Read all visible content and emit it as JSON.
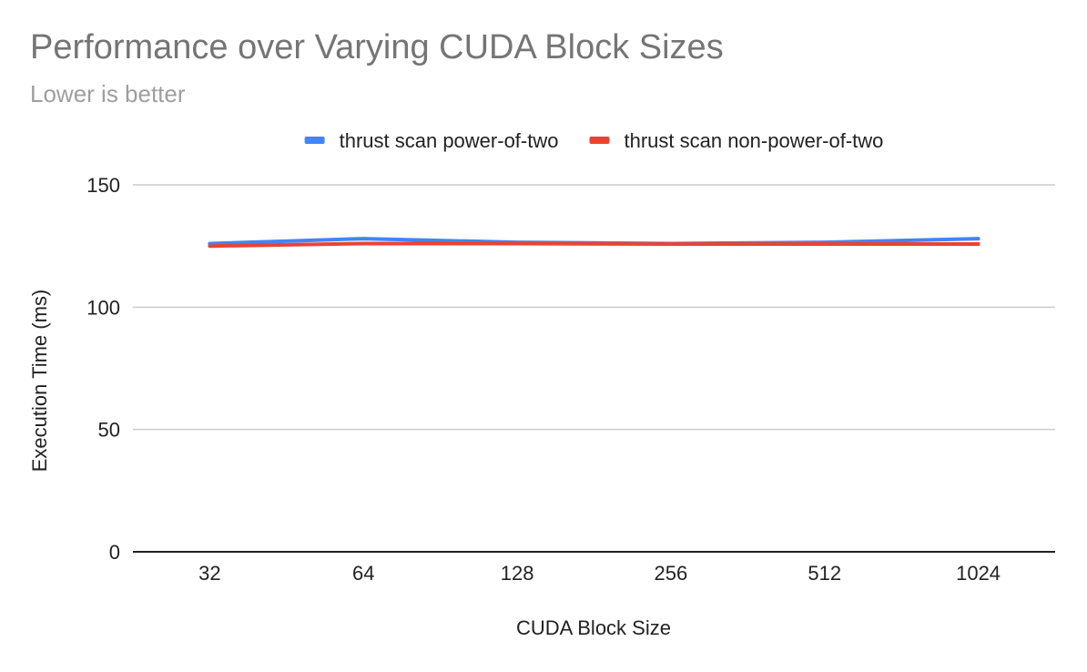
{
  "chart_data": {
    "type": "line",
    "title": "Performance over Varying CUDA Block Sizes",
    "subtitle": "Lower is better",
    "xlabel": "CUDA Block Size",
    "ylabel": "Execution Time (ms)",
    "categories": [
      "32",
      "64",
      "128",
      "256",
      "512",
      "1024"
    ],
    "ylim": [
      0,
      150
    ],
    "yticks": [
      "0",
      "50",
      "100",
      "150"
    ],
    "grid": true,
    "legend_position": "top",
    "series": [
      {
        "name": "thrust scan power-of-two",
        "color": "#4285f4",
        "values": [
          126,
          128,
          126.5,
          126,
          126.5,
          128
        ]
      },
      {
        "name": "thrust scan non-power-of-two",
        "color": "#ea4335",
        "values": [
          125,
          126,
          126,
          125.8,
          125.8,
          125.8
        ]
      }
    ]
  }
}
